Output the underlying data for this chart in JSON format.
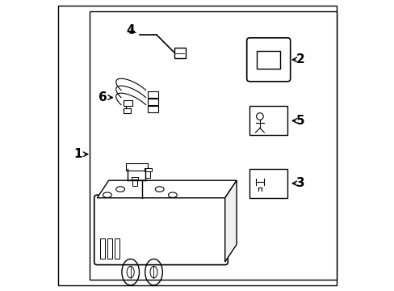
{
  "bg_color": "#ffffff",
  "line_color": "#000000",
  "font_size_labels": 11
}
